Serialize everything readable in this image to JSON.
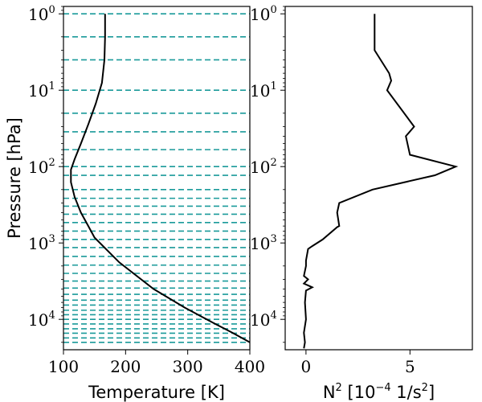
{
  "colors": {
    "level_lines": "#1a9a9a",
    "curve": "#000000",
    "frame": "#000000"
  },
  "chart_data": [
    {
      "type": "line",
      "xlabel": "Temperature [K]",
      "ylabel": "Pressure [hPa]",
      "xlim": [
        100,
        400
      ],
      "ylim": [
        25000,
        0.8
      ],
      "yscale": "log",
      "y_inverted": true,
      "x_ticks": [
        "100",
        "200",
        "300",
        "400"
      ],
      "y_ticks": [
        {
          "value": 1,
          "base": "10",
          "exp": "0"
        },
        {
          "value": 10,
          "base": "10",
          "exp": "1"
        },
        {
          "value": 100,
          "base": "10",
          "exp": "2"
        },
        {
          "value": 1000,
          "base": "10",
          "exp": "3"
        },
        {
          "value": 10000,
          "base": "10",
          "exp": "4"
        }
      ],
      "grid": false,
      "level_lines": [
        1,
        2,
        4,
        10,
        20,
        35,
        60,
        100,
        130,
        200,
        260,
        330,
        420,
        540,
        700,
        900,
        1150,
        1500,
        1950,
        2500,
        3150,
        3900,
        4700,
        5600,
        6500,
        7600,
        8700,
        10000,
        11500,
        13300,
        15200,
        17500,
        20000
      ],
      "series": [
        {
          "x": [
            167,
            167,
            166,
            162,
            152,
            140,
            128,
            118,
            112,
            112,
            118,
            128,
            140,
            150,
            190,
            245,
            295,
            340,
            372,
            400
          ],
          "y": [
            1,
            2,
            4,
            8,
            15,
            28,
            50,
            80,
            110,
            160,
            250,
            400,
            600,
            850,
            1800,
            4000,
            7000,
            11000,
            15000,
            20000
          ]
        }
      ]
    },
    {
      "type": "line",
      "xlabel_main": "N",
      "xlabel_sup": "2",
      "xlabel_units_pre": "[10",
      "xlabel_units_sup": "−4",
      "xlabel_units_mid": " 1/s",
      "xlabel_units_sup2": "2",
      "xlabel_units_post": "]",
      "xlim": [
        -1,
        8
      ],
      "ylim": [
        25000,
        0.8
      ],
      "yscale": "log",
      "y_inverted": true,
      "x_ticks": [
        "0",
        "5"
      ],
      "y_ticks": [
        {
          "value": 1,
          "base": "10",
          "exp": "0"
        },
        {
          "value": 10,
          "base": "10",
          "exp": "1"
        },
        {
          "value": 100,
          "base": "10",
          "exp": "2"
        },
        {
          "value": 1000,
          "base": "10",
          "exp": "3"
        },
        {
          "value": 10000,
          "base": "10",
          "exp": "4"
        }
      ],
      "grid": false,
      "series": [
        {
          "x": [
            3.3,
            3.3,
            4.0,
            4.1,
            3.9,
            5.2,
            4.8,
            5.0,
            7.2,
            6.2,
            3.2,
            1.6,
            1.5,
            1.6,
            1.5,
            0.8,
            0.3,
            0.1,
            0.0,
            0.0,
            -0.1,
            0.1,
            -0.1,
            0.3,
            0.0,
            -0.05,
            0.0,
            -0.1,
            -0.05,
            -0.1
          ],
          "y": [
            1,
            3,
            6,
            7.5,
            10,
            30,
            40,
            70,
            100,
            130,
            200,
            300,
            400,
            600,
            620,
            900,
            1100,
            1200,
            1700,
            2000,
            2700,
            3000,
            3400,
            3800,
            4200,
            6000,
            10000,
            15000,
            20000,
            24000
          ]
        }
      ]
    }
  ]
}
